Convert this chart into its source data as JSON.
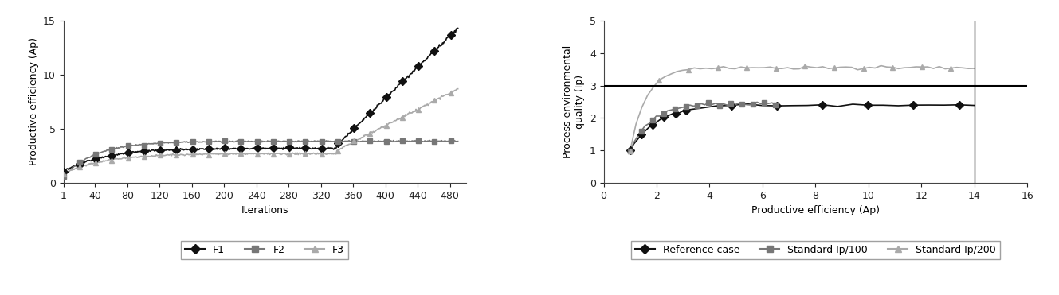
{
  "chart1": {
    "xlabel": "Iterations",
    "ylabel": "Productive efficiency (Ap)",
    "xlim": [
      1,
      500
    ],
    "ylim": [
      0,
      15
    ],
    "xticks": [
      1,
      40,
      80,
      120,
      160,
      200,
      240,
      280,
      320,
      360,
      400,
      440,
      480
    ],
    "yticks": [
      0,
      5,
      10,
      15
    ],
    "series": {
      "F1": {
        "color": "#111111",
        "marker": "D",
        "markersize": 5,
        "linewidth": 1.2
      },
      "F2": {
        "color": "#777777",
        "marker": "s",
        "markersize": 5,
        "linewidth": 1.2
      },
      "F3": {
        "color": "#aaaaaa",
        "marker": "^",
        "markersize": 5,
        "linewidth": 1.2
      }
    }
  },
  "chart2": {
    "xlabel": "Productive efficiency (Ap)",
    "ylabel": "Process environmental\nquality (Ip)",
    "xlim": [
      0,
      16
    ],
    "ylim": [
      0,
      5
    ],
    "xticks": [
      0,
      2,
      4,
      6,
      8,
      10,
      12,
      14,
      16
    ],
    "yticks": [
      0,
      1,
      2,
      3,
      4,
      5
    ],
    "hline_y": 3.0,
    "vline_x": 14.0,
    "series": {
      "Reference case": {
        "color": "#111111",
        "marker": "D",
        "markersize": 5,
        "linewidth": 1.2
      },
      "Standard Ip/100": {
        "color": "#777777",
        "marker": "s",
        "markersize": 4,
        "linewidth": 1.2
      },
      "Standard Ip/200": {
        "color": "#aaaaaa",
        "marker": "^",
        "markersize": 5,
        "linewidth": 1.2
      }
    }
  },
  "background_color": "#ffffff",
  "legend_fontsize": 9,
  "axis_fontsize": 9,
  "label_fontsize": 9
}
